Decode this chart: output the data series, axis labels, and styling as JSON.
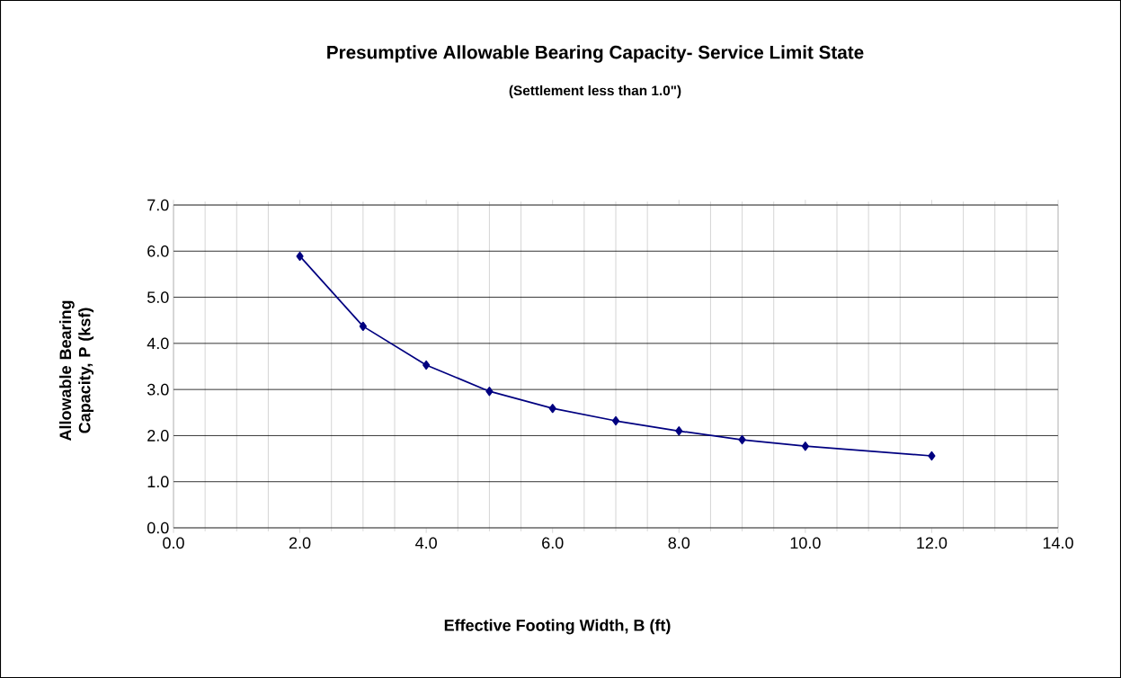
{
  "chart_data": {
    "type": "line",
    "title": "Presumptive Allowable Bearing Capacity- Service Limit State",
    "subtitle": "(Settlement less than 1.0\")",
    "xlabel": "Effective Footing Width, B (ft)",
    "ylabel": "Allowable Bearing Capacity, P (ksf)",
    "x": [
      2,
      3,
      4,
      5,
      6,
      7,
      8,
      9,
      10,
      12
    ],
    "series": [
      {
        "color": "#000080",
        "values": [
          5.89,
          4.37,
          3.53,
          2.96,
          2.59,
          2.32,
          2.1,
          1.91,
          1.77,
          1.56
        ]
      }
    ],
    "xlim": [
      0,
      14
    ],
    "ylim": [
      0,
      7
    ],
    "xticks": [
      {
        "value": 0,
        "label": "0.0"
      },
      {
        "value": 2,
        "label": "2.0"
      },
      {
        "value": 4,
        "label": "4.0"
      },
      {
        "value": 6,
        "label": "6.0"
      },
      {
        "value": 8,
        "label": "8.0"
      },
      {
        "value": 10,
        "label": "10.0"
      },
      {
        "value": 12,
        "label": "12.0"
      },
      {
        "value": 14,
        "label": "14.0"
      }
    ],
    "yticks": [
      {
        "value": 0,
        "label": "0.0"
      },
      {
        "value": 1,
        "label": "1.0"
      },
      {
        "value": 2,
        "label": "2.0"
      },
      {
        "value": 3,
        "label": "3.0"
      },
      {
        "value": 4,
        "label": "4.0"
      },
      {
        "value": 5,
        "label": "5.0"
      },
      {
        "value": 6,
        "label": "6.0"
      },
      {
        "value": 7,
        "label": "7.0"
      }
    ],
    "grid": true,
    "marker": "diamond",
    "line_style": "solid"
  }
}
